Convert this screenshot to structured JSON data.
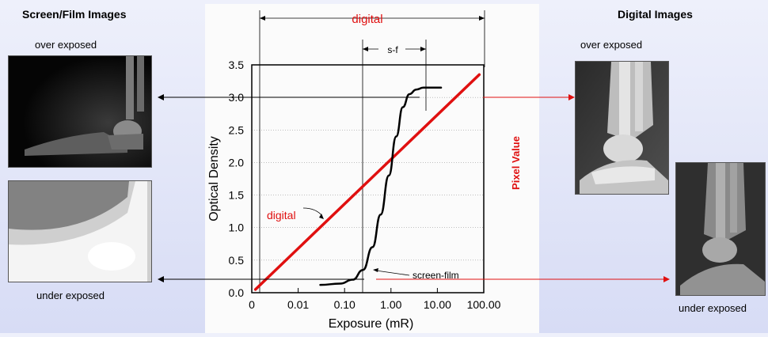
{
  "left": {
    "heading": "Screen/Film Images",
    "over_caption": "over exposed",
    "under_caption": "under exposed"
  },
  "right": {
    "heading": "Digital Images",
    "over_caption": "over exposed",
    "under_caption": "under exposed"
  },
  "colors": {
    "digital": "#e01010",
    "screen_film": "#000000",
    "background": "#dde1f6"
  },
  "chart_data": {
    "type": "line",
    "xlabel": "Exposure (mR)",
    "ylabel": "Optical Density",
    "right_label": "Pixel Value",
    "xscale": "log",
    "xlim": [
      0.001,
      100
    ],
    "ylim": [
      0,
      3.5
    ],
    "x_ticks": [
      {
        "value": 0.001,
        "label": "0"
      },
      {
        "value": 0.01,
        "label": "0.01"
      },
      {
        "value": 0.1,
        "label": "0.10"
      },
      {
        "value": 1,
        "label": "1.00"
      },
      {
        "value": 10,
        "label": "10.00"
      },
      {
        "value": 100,
        "label": "100.00"
      }
    ],
    "y_ticks": [
      {
        "value": 0.0,
        "label": "0.0"
      },
      {
        "value": 0.5,
        "label": "0.5"
      },
      {
        "value": 1.0,
        "label": "1.0"
      },
      {
        "value": 1.5,
        "label": "1.5"
      },
      {
        "value": 2.0,
        "label": "2.0"
      },
      {
        "value": 2.5,
        "label": "2.5"
      },
      {
        "value": 3.0,
        "label": "3.0"
      },
      {
        "value": 3.5,
        "label": "3.5"
      }
    ],
    "grid": true,
    "series": [
      {
        "name": "digital",
        "color": "#e01010",
        "x": [
          0.0012,
          80
        ],
        "y": [
          0.05,
          3.35
        ]
      },
      {
        "name": "screen-film",
        "color": "#000000",
        "x": [
          0.03,
          0.08,
          0.15,
          0.25,
          0.4,
          0.6,
          0.9,
          1.3,
          1.8,
          2.5,
          3.5,
          5,
          8,
          12
        ],
        "y": [
          0.12,
          0.14,
          0.2,
          0.35,
          0.7,
          1.2,
          1.8,
          2.4,
          2.85,
          3.05,
          3.12,
          3.15,
          3.15,
          3.15
        ]
      }
    ],
    "range_labels": {
      "digital": "digital",
      "screen_film": "s-f"
    },
    "annotations": {
      "digital": "digital",
      "screen_film": "screen-film"
    }
  }
}
